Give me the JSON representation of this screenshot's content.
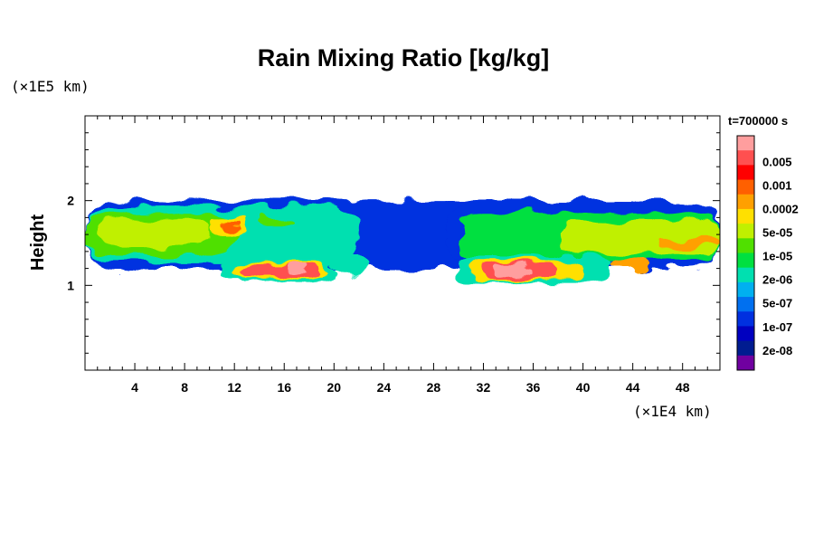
{
  "chart_data": {
    "type": "heatmap",
    "title": "Rain Mixing Ratio [kg/kg]",
    "time_label": "t=700000 s",
    "xlabel": "",
    "ylabel": "Height",
    "x_unit": "(×1E4 km)",
    "y_unit": "(×1E5 km)",
    "xlim": [
      0,
      51
    ],
    "ylim": [
      0,
      3
    ],
    "x_ticks": [
      "4",
      "8",
      "12",
      "16",
      "20",
      "24",
      "28",
      "32",
      "36",
      "40",
      "44",
      "48"
    ],
    "x_tick_values": [
      4,
      8,
      12,
      16,
      20,
      24,
      28,
      32,
      36,
      40,
      44,
      48
    ],
    "y_ticks": [
      "1",
      "2"
    ],
    "y_tick_values": [
      1,
      2
    ],
    "colorbar": {
      "labels": [
        "0.005",
        "0.001",
        "0.0002",
        "5e-05",
        "1e-05",
        "2e-06",
        "5e-07",
        "1e-07",
        "2e-08"
      ],
      "colors": [
        "#ff9e9e",
        "#ff5050",
        "#ff0000",
        "#ff6000",
        "#ffa000",
        "#ffe000",
        "#c0f000",
        "#50e000",
        "#00e040",
        "#00e0b0",
        "#00b0f0",
        "#0070f0",
        "#0030e0",
        "#0000c0",
        "#001c90",
        "#7000a0"
      ]
    },
    "regions": [
      {
        "level": 3,
        "x": [
          0,
          51
        ],
        "y": [
          1.18,
          2.0
        ]
      },
      {
        "level": 6,
        "x": [
          0,
          22
        ],
        "y": [
          1.25,
          1.92
        ]
      },
      {
        "level": 8,
        "x": [
          0,
          12
        ],
        "y": [
          1.35,
          1.85
        ]
      },
      {
        "level": 9,
        "x": [
          1,
          10
        ],
        "y": [
          1.45,
          1.78
        ]
      },
      {
        "level": 10,
        "x": [
          10,
          13
        ],
        "y": [
          1.65,
          1.8
        ]
      },
      {
        "level": 12,
        "x": [
          11,
          12.5
        ],
        "y": [
          1.7,
          1.75
        ]
      },
      {
        "level": 8,
        "x": [
          14,
          17
        ],
        "y": [
          1.7,
          1.8
        ]
      },
      {
        "level": 6,
        "x": [
          11,
          20
        ],
        "y": [
          1.05,
          1.3
        ]
      },
      {
        "level": 10,
        "x": [
          12,
          19.5
        ],
        "y": [
          1.08,
          1.28
        ]
      },
      {
        "level": 14,
        "x": [
          12.5,
          19
        ],
        "y": [
          1.1,
          1.25
        ]
      },
      {
        "level": 15,
        "x": [
          16,
          18
        ],
        "y": [
          1.15,
          1.25
        ]
      },
      {
        "level": 6,
        "x": [
          20,
          23
        ],
        "y": [
          1.15,
          1.35
        ]
      },
      {
        "level": 3,
        "x": [
          29,
          51
        ],
        "y": [
          1.2,
          2.0
        ]
      },
      {
        "level": 7,
        "x": [
          30,
          51
        ],
        "y": [
          1.28,
          1.85
        ]
      },
      {
        "level": 9,
        "x": [
          38,
          51
        ],
        "y": [
          1.38,
          1.75
        ]
      },
      {
        "level": 11,
        "x": [
          46,
          51
        ],
        "y": [
          1.45,
          1.55
        ]
      },
      {
        "level": 6,
        "x": [
          30,
          42
        ],
        "y": [
          1.05,
          1.35
        ]
      },
      {
        "level": 10,
        "x": [
          31,
          40
        ],
        "y": [
          1.08,
          1.3
        ]
      },
      {
        "level": 14,
        "x": [
          32,
          38
        ],
        "y": [
          1.1,
          1.25
        ]
      },
      {
        "level": 15,
        "x": [
          33,
          36
        ],
        "y": [
          1.14,
          1.22
        ]
      },
      {
        "level": 11,
        "x": [
          42,
          45
        ],
        "y": [
          1.18,
          1.3
        ]
      }
    ]
  }
}
